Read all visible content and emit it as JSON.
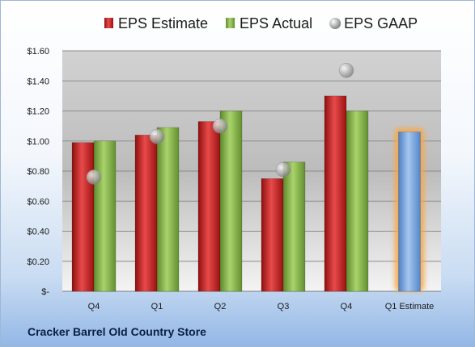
{
  "company_name": "Cracker Barrel Old Country Store",
  "chart_data": {
    "type": "bar",
    "categories": [
      "Q4",
      "Q1",
      "Q2",
      "Q3",
      "Q4",
      "Q1 Estimate"
    ],
    "y_tick_labels": [
      "$-",
      "$0.20",
      "$0.40",
      "$0.60",
      "$0.80",
      "$1.00",
      "$1.20",
      "$1.40",
      "$1.60"
    ],
    "ylim": [
      0,
      1.6
    ],
    "grid": true,
    "legend_position": "top",
    "series": [
      {
        "name": "EPS Estimate",
        "kind": "bar",
        "color": "#cc1f1f",
        "values": [
          0.99,
          1.04,
          1.13,
          0.75,
          1.3,
          null
        ]
      },
      {
        "name": "EPS Actual",
        "kind": "bar",
        "color": "#86b64a",
        "values": [
          1.0,
          1.09,
          1.2,
          0.86,
          1.2,
          null
        ]
      },
      {
        "name": "EPS GAAP",
        "kind": "marker",
        "color": "#b8b8b8",
        "values": [
          0.76,
          1.03,
          1.1,
          0.81,
          1.47,
          null
        ]
      },
      {
        "name": "Q1 Estimate",
        "kind": "bar",
        "color": "#6f9fdc",
        "highlight": "#f5a94a",
        "values": [
          null,
          null,
          null,
          null,
          null,
          1.06
        ]
      }
    ]
  }
}
